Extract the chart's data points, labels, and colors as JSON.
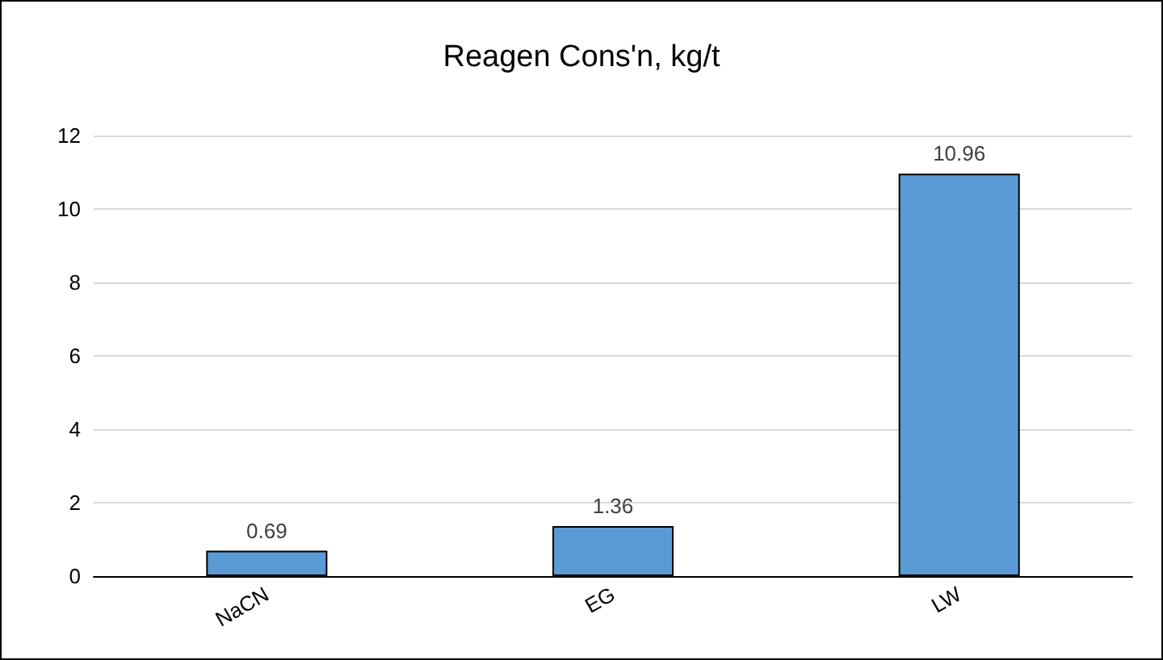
{
  "chart_data": {
    "type": "bar",
    "title": "Reagen Cons'n, kg/t",
    "categories": [
      "NaCN",
      "EG",
      "LW"
    ],
    "values": [
      0.69,
      1.36,
      10.96
    ],
    "color": "#5b9bd5",
    "ylim": [
      0,
      12
    ],
    "yticks": [
      0,
      2,
      4,
      6,
      8,
      10,
      12
    ],
    "grid": "y",
    "data_labels": true
  }
}
